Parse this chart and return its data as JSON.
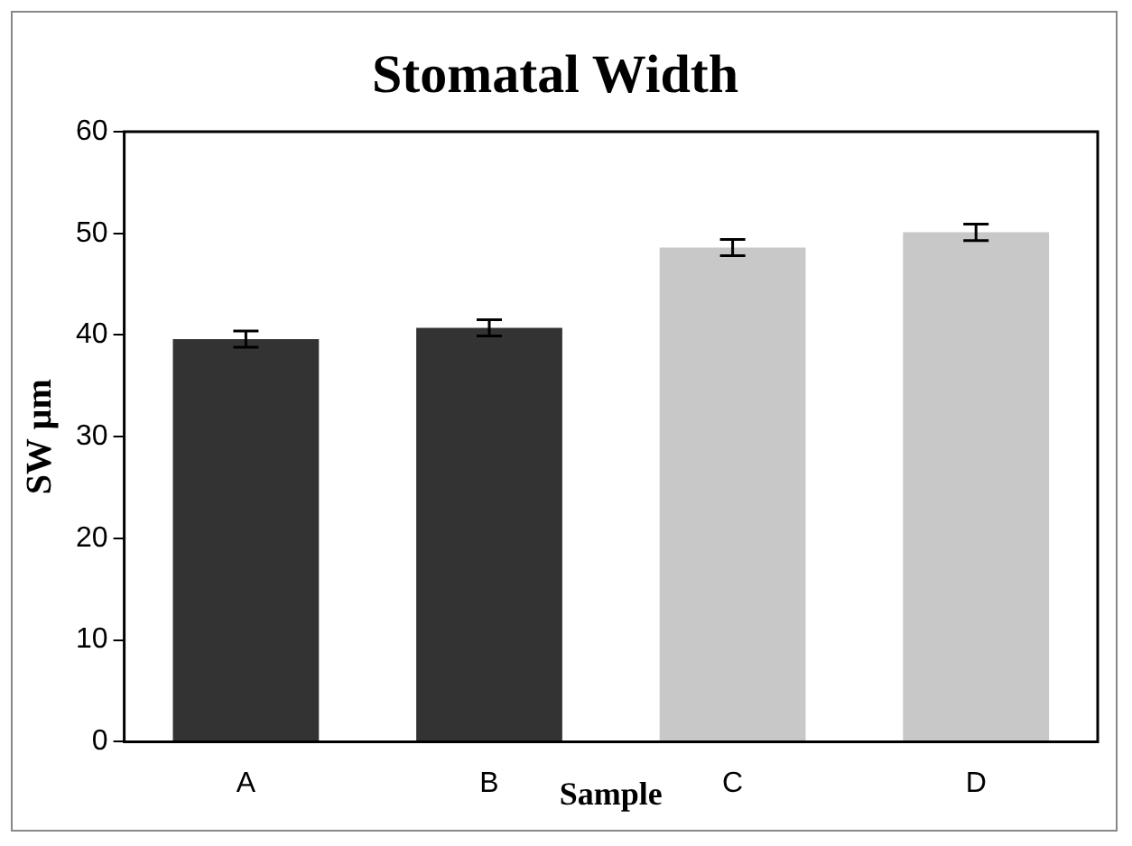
{
  "chart_data": {
    "type": "bar",
    "title": "Stomatal Width",
    "xlabel": "Sample",
    "ylabel": "SW µm",
    "categories": [
      "A",
      "B",
      "C",
      "D"
    ],
    "values": [
      39.6,
      40.7,
      48.6,
      50.1
    ],
    "errors": [
      0.8,
      0.8,
      0.8,
      0.8
    ],
    "colors": [
      "#333333",
      "#333333",
      "#c8c8c8",
      "#c8c8c8"
    ],
    "ylim": [
      0,
      60
    ],
    "yticks": [
      0,
      10,
      20,
      30,
      40,
      50,
      60
    ],
    "grid": false,
    "legend": false
  }
}
